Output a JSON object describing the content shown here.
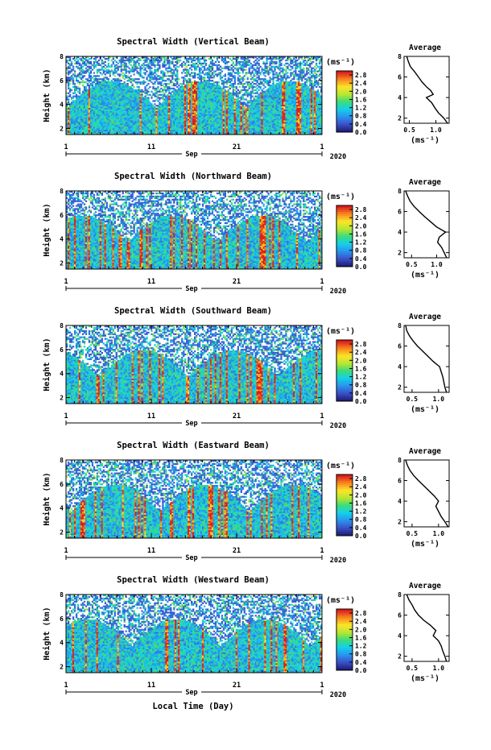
{
  "figure": {
    "x_axis_label": "Local Time (Day)",
    "month_label": "Sep",
    "year_label": "2020"
  },
  "chart_data": [
    {
      "type": "heatmap",
      "title": "Spectral Width (Vertical Beam)",
      "ylabel": "Height (km)",
      "ylim": [
        1.5,
        8
      ],
      "yticks": [
        2,
        4,
        6,
        8
      ],
      "xlim": [
        1,
        31
      ],
      "xtick_labels": [
        "1",
        "11",
        "21",
        "1"
      ],
      "month": "Sep",
      "year": "2020",
      "colorbar": {
        "unit_label": "(ms⁻¹)",
        "ticks": [
          "0.0",
          "0.4",
          "0.8",
          "1.2",
          "1.6",
          "2.0",
          "2.4",
          "2.8"
        ],
        "range": [
          0,
          3.0
        ]
      },
      "average": {
        "title": "Average",
        "xlabel": "(ms⁻¹)",
        "xticks": [
          0.5,
          1.0
        ],
        "xlim": [
          0.4,
          1.25
        ],
        "profile": [
          [
            1.22,
            1.5
          ],
          [
            1.15,
            2.0
          ],
          [
            1.05,
            2.5
          ],
          [
            0.98,
            3.0
          ],
          [
            0.92,
            3.5
          ],
          [
            0.82,
            4.0
          ],
          [
            0.95,
            4.3
          ],
          [
            0.9,
            4.7
          ],
          [
            0.83,
            5.0
          ],
          [
            0.74,
            5.5
          ],
          [
            0.67,
            6.0
          ],
          [
            0.6,
            6.5
          ],
          [
            0.52,
            7.0
          ],
          [
            0.48,
            7.5
          ],
          [
            0.45,
            8.0
          ]
        ]
      }
    },
    {
      "type": "heatmap",
      "title": "Spectral Width (Northward Beam)",
      "ylabel": "Height (km)",
      "ylim": [
        1.5,
        8
      ],
      "yticks": [
        2,
        4,
        6,
        8
      ],
      "xlim": [
        1,
        31
      ],
      "xtick_labels": [
        "1",
        "11",
        "21",
        "1"
      ],
      "month": "Sep",
      "year": "2020",
      "colorbar": {
        "unit_label": "(ms⁻¹)",
        "ticks": [
          "0.0",
          "0.4",
          "0.8",
          "1.2",
          "1.6",
          "2.0",
          "2.4",
          "2.8"
        ],
        "range": [
          0,
          3.0
        ]
      },
      "average": {
        "title": "Average",
        "xlabel": "(ms⁻¹)",
        "xticks": [
          0.5,
          1.0
        ],
        "xlim": [
          0.35,
          1.25
        ],
        "profile": [
          [
            1.2,
            1.5
          ],
          [
            1.15,
            2.0
          ],
          [
            1.1,
            2.5
          ],
          [
            1.02,
            3.0
          ],
          [
            1.05,
            3.5
          ],
          [
            1.18,
            4.0
          ],
          [
            1.0,
            4.5
          ],
          [
            0.88,
            5.0
          ],
          [
            0.76,
            5.5
          ],
          [
            0.65,
            6.0
          ],
          [
            0.55,
            6.5
          ],
          [
            0.47,
            7.0
          ],
          [
            0.42,
            7.5
          ],
          [
            0.38,
            8.0
          ]
        ]
      }
    },
    {
      "type": "heatmap",
      "title": "Spectral Width (Southward Beam)",
      "ylabel": "Height (km)",
      "ylim": [
        1.5,
        8
      ],
      "yticks": [
        2,
        4,
        6,
        8
      ],
      "xlim": [
        1,
        31
      ],
      "xtick_labels": [
        "1",
        "11",
        "21",
        "1"
      ],
      "month": "Sep",
      "year": "2020",
      "colorbar": {
        "unit_label": "(ms⁻¹)",
        "ticks": [
          "0.0",
          "0.4",
          "0.8",
          "1.2",
          "1.6",
          "2.0",
          "2.4",
          "2.8"
        ],
        "range": [
          0,
          3.0
        ]
      },
      "average": {
        "title": "Average",
        "xlabel": "(ms⁻¹)",
        "xticks": [
          0.5,
          1.0
        ],
        "xlim": [
          0.35,
          1.2
        ],
        "profile": [
          [
            1.15,
            1.5
          ],
          [
            1.12,
            2.0
          ],
          [
            1.1,
            2.5
          ],
          [
            1.08,
            3.0
          ],
          [
            1.05,
            3.5
          ],
          [
            1.02,
            4.0
          ],
          [
            0.9,
            4.5
          ],
          [
            0.8,
            5.0
          ],
          [
            0.7,
            5.5
          ],
          [
            0.6,
            6.0
          ],
          [
            0.52,
            6.5
          ],
          [
            0.45,
            7.0
          ],
          [
            0.4,
            7.5
          ],
          [
            0.38,
            8.0
          ]
        ]
      }
    },
    {
      "type": "heatmap",
      "title": "Spectral Width (Eastward Beam)",
      "ylabel": "Height (km)",
      "ylim": [
        1.5,
        8
      ],
      "yticks": [
        2,
        4,
        6,
        8
      ],
      "xlim": [
        1,
        31
      ],
      "xtick_labels": [
        "1",
        "11",
        "21",
        "1"
      ],
      "month": "Sep",
      "year": "2020",
      "colorbar": {
        "unit_label": "(ms⁻¹)",
        "ticks": [
          "0.0",
          "0.4",
          "0.8",
          "1.2",
          "1.6",
          "2.0",
          "2.4",
          "2.8"
        ],
        "range": [
          0,
          3.0
        ]
      },
      "average": {
        "title": "Average",
        "xlabel": "(ms⁻¹)",
        "xticks": [
          0.5,
          1.0
        ],
        "xlim": [
          0.35,
          1.2
        ],
        "profile": [
          [
            1.18,
            1.5
          ],
          [
            1.12,
            2.0
          ],
          [
            1.05,
            2.5
          ],
          [
            1.0,
            3.0
          ],
          [
            0.95,
            3.5
          ],
          [
            1.0,
            4.0
          ],
          [
            0.92,
            4.5
          ],
          [
            0.82,
            5.0
          ],
          [
            0.72,
            5.5
          ],
          [
            0.62,
            6.0
          ],
          [
            0.53,
            6.5
          ],
          [
            0.46,
            7.0
          ],
          [
            0.41,
            7.5
          ],
          [
            0.38,
            8.0
          ]
        ]
      }
    },
    {
      "type": "heatmap",
      "title": "Spectral Width (Westward Beam)",
      "ylabel": "Height (km)",
      "ylim": [
        1.5,
        8
      ],
      "yticks": [
        2,
        4,
        6,
        8
      ],
      "xlim": [
        1,
        31
      ],
      "xtick_labels": [
        "1",
        "11",
        "21",
        "1"
      ],
      "month": "Sep",
      "year": "2020",
      "colorbar": {
        "unit_label": "(ms⁻¹)",
        "ticks": [
          "0.0",
          "0.4",
          "0.8",
          "1.2",
          "1.6",
          "2.0",
          "2.4",
          "2.8"
        ],
        "range": [
          0,
          3.0
        ]
      },
      "average": {
        "title": "Average",
        "xlabel": "(ms⁻¹)",
        "xticks": [
          0.5,
          1.0
        ],
        "xlim": [
          0.35,
          1.2
        ],
        "profile": [
          [
            1.15,
            1.5
          ],
          [
            1.12,
            2.0
          ],
          [
            1.08,
            2.5
          ],
          [
            1.05,
            3.0
          ],
          [
            1.0,
            3.5
          ],
          [
            0.9,
            4.0
          ],
          [
            0.95,
            4.5
          ],
          [
            0.85,
            5.0
          ],
          [
            0.72,
            5.5
          ],
          [
            0.62,
            6.0
          ],
          [
            0.55,
            6.5
          ],
          [
            0.5,
            7.0
          ],
          [
            0.44,
            7.5
          ],
          [
            0.4,
            8.0
          ]
        ]
      }
    }
  ]
}
